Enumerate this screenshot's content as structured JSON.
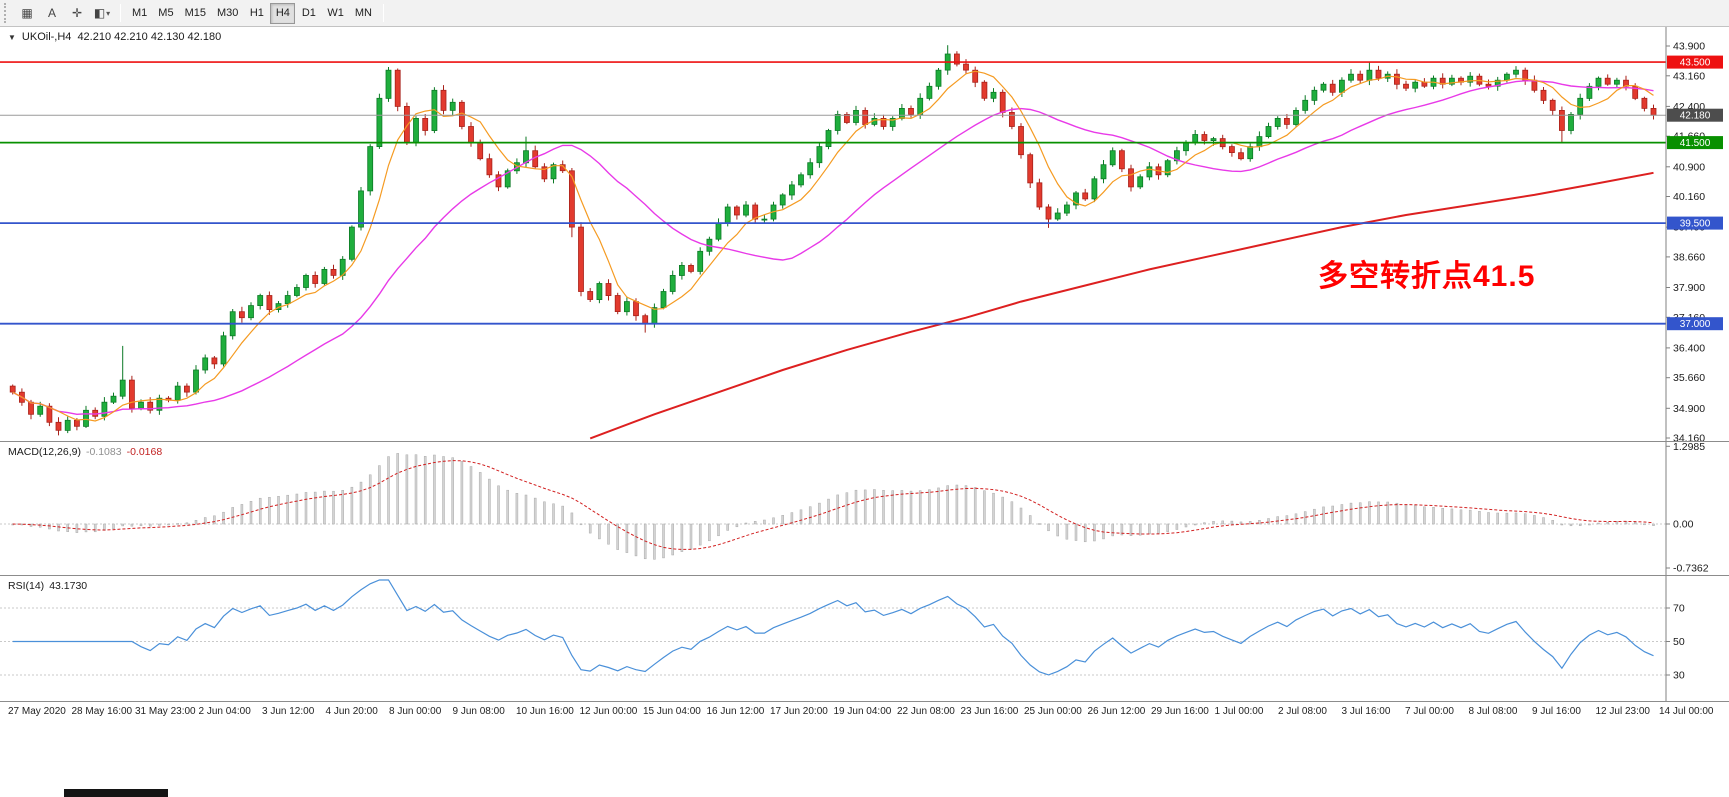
{
  "toolbar": {
    "tools": [
      {
        "name": "chart-grid",
        "glyph": "▦"
      },
      {
        "name": "text-label",
        "glyph": "A"
      },
      {
        "name": "crosshair",
        "glyph": "✛"
      },
      {
        "name": "colors-dropdown",
        "glyph": "◧",
        "caret": true
      }
    ],
    "timeframes": [
      "M1",
      "M5",
      "M15",
      "M30",
      "H1",
      "H4",
      "D1",
      "W1",
      "MN"
    ],
    "active_timeframe": "H4"
  },
  "chart_data": [
    {
      "type": "candlestick",
      "title": "UKOil-,H4",
      "symbol": "UKOil-",
      "timeframe": "H4",
      "ohlc_text": "42.210 42.210 42.130 42.180",
      "up_color": "#1fae3d",
      "up_stroke": "#0c7a26",
      "down_color": "#e23a2e",
      "down_stroke": "#a8221a",
      "ylim": [
        34.14,
        44.15
      ],
      "y_ticks": [
        "43.900",
        "43.160",
        "42.400",
        "41.660",
        "40.900",
        "40.160",
        "39.400",
        "38.660",
        "37.900",
        "37.160",
        "36.400",
        "35.660",
        "34.900",
        "34.160"
      ],
      "x_labels": [
        "27 May 2020",
        "28 May 16:00",
        "31 May 23:00",
        "2 Jun 04:00",
        "3 Jun 12:00",
        "4 Jun 20:00",
        "8 Jun 00:00",
        "9 Jun 08:00",
        "10 Jun 16:00",
        "12 Jun 00:00",
        "15 Jun 04:00",
        "16 Jun 12:00",
        "17 Jun 20:00",
        "19 Jun 04:00",
        "22 Jun 08:00",
        "23 Jun 16:00",
        "25 Jun 00:00",
        "26 Jun 12:00",
        "29 Jun 16:00",
        "1 Jul 00:00",
        "2 Jul 08:00",
        "3 Jul 16:00",
        "7 Jul 00:00",
        "8 Jul 08:00",
        "9 Jul 16:00",
        "12 Jul 23:00",
        "14 Jul 00:00"
      ],
      "first_open": 35.45,
      "closes": [
        35.3,
        35.05,
        34.75,
        34.95,
        34.55,
        34.35,
        34.6,
        34.45,
        34.85,
        34.7,
        35.05,
        35.2,
        35.6,
        34.9,
        35.05,
        34.85,
        35.15,
        35.1,
        35.45,
        35.3,
        35.85,
        36.15,
        36.0,
        36.7,
        37.3,
        37.15,
        37.45,
        37.7,
        37.35,
        37.5,
        37.7,
        37.9,
        38.2,
        38.0,
        38.35,
        38.2,
        38.6,
        39.4,
        40.3,
        41.4,
        42.6,
        43.3,
        42.4,
        41.5,
        42.1,
        41.8,
        42.8,
        42.3,
        42.5,
        41.9,
        41.5,
        41.1,
        40.7,
        40.4,
        40.8,
        41.0,
        41.3,
        40.9,
        40.6,
        40.95,
        40.8,
        39.4,
        37.8,
        37.6,
        38.0,
        37.7,
        37.3,
        37.55,
        37.2,
        37.0,
        37.4,
        37.8,
        38.2,
        38.45,
        38.3,
        38.8,
        39.1,
        39.5,
        39.9,
        39.7,
        39.95,
        39.6,
        39.6,
        39.95,
        40.2,
        40.45,
        40.7,
        41.0,
        41.4,
        41.8,
        42.2,
        42.0,
        42.3,
        41.95,
        42.1,
        41.9,
        42.1,
        42.35,
        42.2,
        42.6,
        42.9,
        43.3,
        43.7,
        43.45,
        43.3,
        43.0,
        42.6,
        42.75,
        42.25,
        41.9,
        41.2,
        40.5,
        39.9,
        39.6,
        39.75,
        39.95,
        40.25,
        40.1,
        40.6,
        40.95,
        41.3,
        40.85,
        40.4,
        40.65,
        40.9,
        40.7,
        41.05,
        41.3,
        41.5,
        41.7,
        41.55,
        41.6,
        41.4,
        41.25,
        41.1,
        41.4,
        41.65,
        41.9,
        42.1,
        41.95,
        42.3,
        42.55,
        42.8,
        42.95,
        42.75,
        43.05,
        43.2,
        43.05,
        43.3,
        43.1,
        43.2,
        42.95,
        42.85,
        43.0,
        42.9,
        43.1,
        42.95,
        43.1,
        43.0,
        43.15,
        42.95,
        42.9,
        43.05,
        43.2,
        43.3,
        43.05,
        42.8,
        42.55,
        42.3,
        41.8,
        42.2,
        42.6,
        42.9,
        43.1,
        42.95,
        43.05,
        42.9,
        42.6,
        42.35,
        42.18
      ],
      "wick_overrides": {
        "12": {
          "h": 36.45
        },
        "56": {
          "h": 41.65
        },
        "61": {
          "l": 39.15
        },
        "69": {
          "l": 36.78
        },
        "102": {
          "h": 43.92
        },
        "113": {
          "l": 39.38
        },
        "148": {
          "h": 43.5
        },
        "169": {
          "l": 41.48
        }
      },
      "overlays": {
        "ma_fast": {
          "color": "#f59b22",
          "period": 6
        },
        "ma_mid": {
          "color": "#e83ae8",
          "period": 24
        },
        "ma_slow": {
          "color": "#dd2020",
          "points": [
            [
              63,
              34.15
            ],
            [
              70,
              34.75
            ],
            [
              77,
              35.3
            ],
            [
              84,
              35.85
            ],
            [
              91,
              36.35
            ],
            [
              98,
              36.8
            ],
            [
              104,
              37.15
            ],
            [
              110,
              37.55
            ],
            [
              117,
              37.95
            ],
            [
              124,
              38.35
            ],
            [
              131,
              38.7
            ],
            [
              138,
              39.05
            ],
            [
              145,
              39.4
            ],
            [
              152,
              39.7
            ],
            [
              159,
              39.95
            ],
            [
              166,
              40.2
            ],
            [
              172,
              40.45
            ],
            [
              179,
              40.75
            ]
          ]
        }
      },
      "hlines": [
        {
          "value": 43.5,
          "label": "43.500",
          "color": "#ee1111",
          "width": 1.6
        },
        {
          "value": 41.5,
          "label": "41.500",
          "color": "#089000",
          "width": 1.8
        },
        {
          "value": 39.5,
          "label": "39.500",
          "color": "#3355cc",
          "width": 1.8
        },
        {
          "value": 37.0,
          "label": "37.000",
          "color": "#3355cc",
          "width": 1.8
        }
      ],
      "current_price": {
        "value": 42.18,
        "label": "42.180",
        "line_color": "#9a9a9a",
        "badge_bg": "#4d4d4d"
      },
      "annotation": {
        "text": "多空转折点41.5",
        "color": "#ff0000"
      }
    },
    {
      "type": "macd",
      "label": "MACD(12,26,9)",
      "value_hist": "-0.1083",
      "value_signal": "-0.0168",
      "params": {
        "fast": 12,
        "slow": 26,
        "signal": 9
      },
      "y_ticks": [
        "1.2985",
        "0.00",
        "-0.7362"
      ],
      "histogram_color": "#d4d4d4",
      "histogram_stroke": "#a9a9a9",
      "signal_color": "#d22020"
    },
    {
      "type": "rsi",
      "label": "RSI(14)",
      "value": "43.1730",
      "period": 14,
      "levels": [
        70,
        50,
        30
      ],
      "line_color": "#4a90d9"
    }
  ]
}
